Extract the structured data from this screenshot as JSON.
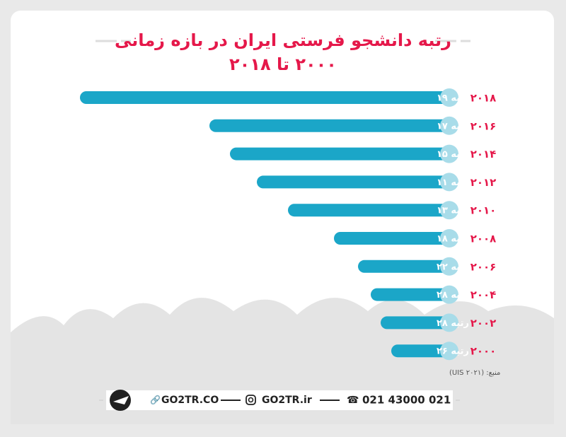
{
  "chart_data": {
    "type": "bar",
    "title": "رتبه دانشجو فرستی ایران در بازه زمانی",
    "subtitle": "۲۰۰۰ تا ۲۰۱۸",
    "categories": [
      "۲۰۱۸",
      "۲۰۱۶",
      "۲۰۱۴",
      "۲۰۱۲",
      "۲۰۱۰",
      "۲۰۰۸",
      "۲۰۰۶",
      "۲۰۰۴",
      "۲۰۰۲",
      "۲۰۰۰"
    ],
    "values": [
      19,
      17,
      15,
      11,
      13,
      18,
      22,
      28,
      28,
      26
    ],
    "value_labels": [
      "رتبه ۱۹",
      "رتبه ۱۷",
      "رتبه ۱۵",
      "رتبه ۱۱",
      "رتبه ۱۳",
      "رتبه ۱۸",
      "رتبه ۲۲",
      "رتبه ۲۸",
      "رتبه ۲۸",
      "رتبه ۲۶"
    ],
    "color": "#1ba6c8",
    "source": "منبع: (UIS ۲۰۲۱)"
  },
  "footer": {
    "phone": "021 43000 021",
    "instagram": "GO2TR.ir",
    "website": "GO2TR.CO"
  }
}
